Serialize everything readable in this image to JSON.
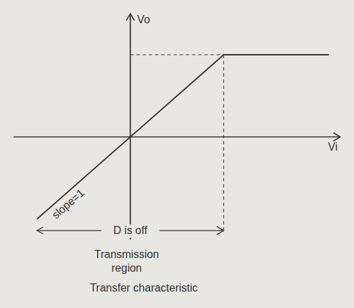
{
  "chart_data": {
    "type": "line",
    "x": [
      -4,
      4,
      8.5
    ],
    "values": [
      -4,
      4,
      4
    ],
    "xlim": [
      -5,
      9
    ],
    "ylim": [
      -5,
      6
    ],
    "x_label": "Vi",
    "y_label": "Vo",
    "tick_labels": false,
    "grid": false,
    "color": "#333333",
    "annotations": [
      "slope=1",
      "D is off",
      "Transmission region"
    ],
    "caption": "Transfer characteristic"
  }
}
